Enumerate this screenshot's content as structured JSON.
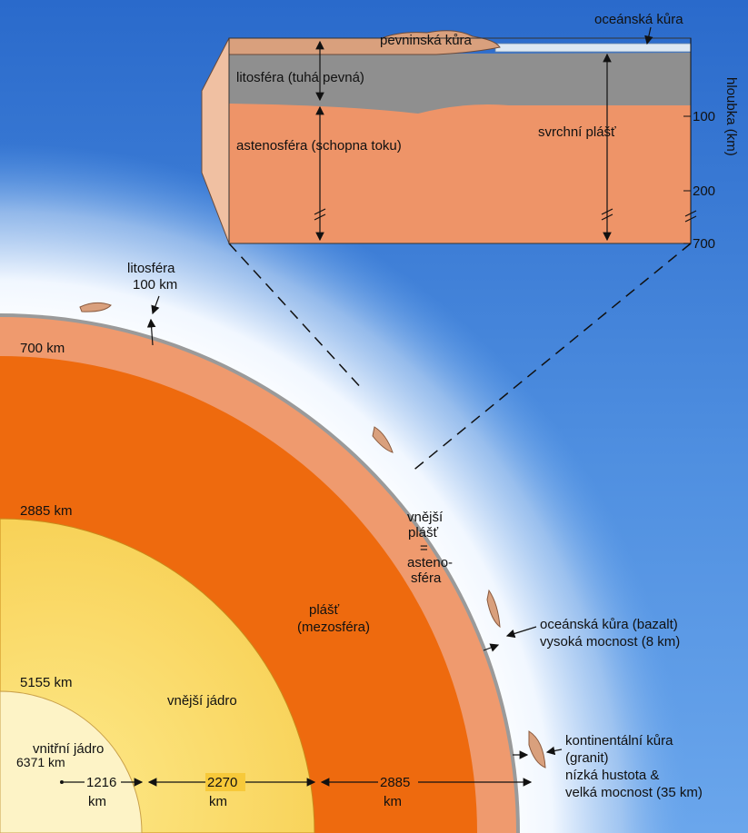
{
  "colors": {
    "sky_top": "#2d6fd0",
    "sky_mid": "#5f9de6",
    "glow": "#eef5ff",
    "lithosphere_grey": "#8d8d8d",
    "crust_tan": "#d9a07d",
    "asthenosphere_salmon": "#ee9468",
    "mantle_orange": "#ef6a0c",
    "outer_core": "#f7c93a",
    "inner_core": "#fdf4c5",
    "oceanic_crust": "#dde8f3"
  },
  "inset": {
    "oceanic_crust": "oceánská kůra",
    "continental_crust": "pevninská kůra",
    "lithosphere": "litosféra (tuhá pevná)",
    "asthenosphere": "astenosféra (schopna toku)",
    "upper_mantle": "svrchní plášť",
    "depth_axis_label": "hloubka (km)",
    "depth_ticks": [
      "100",
      "200",
      "700"
    ]
  },
  "globe": {
    "lithosphere_label_1": "litosféra",
    "lithosphere_label_2": "100 km",
    "depth_700": "700 km",
    "depth_2885": "2885 km",
    "depth_5155": "5155 km",
    "depth_6371": "6371 km",
    "outer_mantle_1": "vnější",
    "outer_mantle_2": "plášť",
    "outer_mantle_3": "=",
    "outer_mantle_4": "asteno-",
    "outer_mantle_5": "sféra",
    "mantle_1": "plášť",
    "mantle_2": "(mezosféra)",
    "outer_core": "vnější jádro",
    "inner_core": "vnitřní jádro",
    "dim_inner_value": "1216",
    "dim_inner_unit": "km",
    "dim_outer_core_value": "2270",
    "dim_outer_core_unit": "km",
    "dim_mantle_value": "2885",
    "dim_mantle_unit": "km"
  },
  "callouts": {
    "oceanic_1": "oceánská kůra (bazalt)",
    "oceanic_2": "vysoká mocnost (8 km)",
    "continental_1": "kontinentální kůra",
    "continental_2": "(granit)",
    "continental_3": "nízká hustota &",
    "continental_4": "velká mocnost (35 km)"
  }
}
